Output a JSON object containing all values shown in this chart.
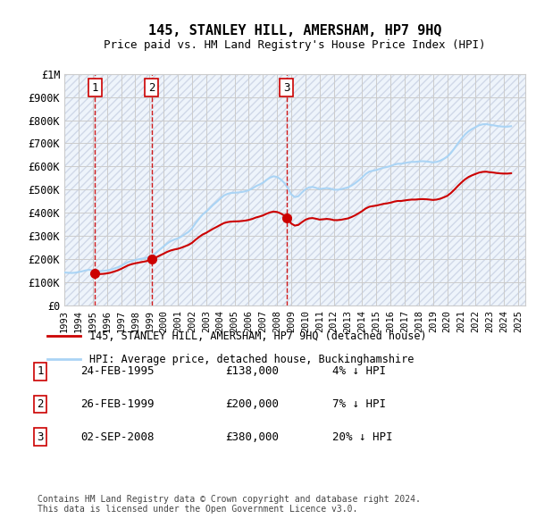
{
  "title": "145, STANLEY HILL, AMERSHAM, HP7 9HQ",
  "subtitle": "Price paid vs. HM Land Registry's House Price Index (HPI)",
  "ylabel_ticks": [
    "£0",
    "£100K",
    "£200K",
    "£300K",
    "£400K",
    "£500K",
    "£600K",
    "£700K",
    "£800K",
    "£900K",
    "£1M"
  ],
  "ytick_values": [
    0,
    100000,
    200000,
    300000,
    400000,
    500000,
    600000,
    700000,
    800000,
    900000,
    1000000
  ],
  "ylim": [
    0,
    1000000
  ],
  "xlim_start": 1993.0,
  "xlim_end": 2025.5,
  "hpi_color": "#aad4f5",
  "price_color": "#cc0000",
  "transaction_color": "#cc0000",
  "dashed_line_color": "#cc0000",
  "background_hatch_color": "#d0d8e8",
  "plot_bg_color": "#eef4fb",
  "transactions": [
    {
      "date": "24-FEB-1995",
      "year": 1995.15,
      "price": 138000,
      "label": "1",
      "pct": "4%",
      "dir": "↓"
    },
    {
      "date": "26-FEB-1999",
      "year": 1999.15,
      "price": 200000,
      "label": "2",
      "pct": "7%",
      "dir": "↓"
    },
    {
      "date": "02-SEP-2008",
      "year": 2008.67,
      "price": 380000,
      "label": "3",
      "pct": "20%",
      "dir": "↓"
    }
  ],
  "legend_line1": "145, STANLEY HILL, AMERSHAM, HP7 9HQ (detached house)",
  "legend_line2": "HPI: Average price, detached house, Buckinghamshire",
  "footnote": "Contains HM Land Registry data © Crown copyright and database right 2024.\nThis data is licensed under the Open Government Licence v3.0.",
  "hpi_data": {
    "years": [
      1993.0,
      1993.25,
      1993.5,
      1993.75,
      1994.0,
      1994.25,
      1994.5,
      1994.75,
      1995.0,
      1995.25,
      1995.5,
      1995.75,
      1996.0,
      1996.25,
      1996.5,
      1996.75,
      1997.0,
      1997.25,
      1997.5,
      1997.75,
      1998.0,
      1998.25,
      1998.5,
      1998.75,
      1999.0,
      1999.25,
      1999.5,
      1999.75,
      2000.0,
      2000.25,
      2000.5,
      2000.75,
      2001.0,
      2001.25,
      2001.5,
      2001.75,
      2002.0,
      2002.25,
      2002.5,
      2002.75,
      2003.0,
      2003.25,
      2003.5,
      2003.75,
      2004.0,
      2004.25,
      2004.5,
      2004.75,
      2005.0,
      2005.25,
      2005.5,
      2005.75,
      2006.0,
      2006.25,
      2006.5,
      2006.75,
      2007.0,
      2007.25,
      2007.5,
      2007.75,
      2008.0,
      2008.25,
      2008.5,
      2008.75,
      2009.0,
      2009.25,
      2009.5,
      2009.75,
      2010.0,
      2010.25,
      2010.5,
      2010.75,
      2011.0,
      2011.25,
      2011.5,
      2011.75,
      2012.0,
      2012.25,
      2012.5,
      2012.75,
      2013.0,
      2013.25,
      2013.5,
      2013.75,
      2014.0,
      2014.25,
      2014.5,
      2014.75,
      2015.0,
      2015.25,
      2015.5,
      2015.75,
      2016.0,
      2016.25,
      2016.5,
      2016.75,
      2017.0,
      2017.25,
      2017.5,
      2017.75,
      2018.0,
      2018.25,
      2018.5,
      2018.75,
      2019.0,
      2019.25,
      2019.5,
      2019.75,
      2020.0,
      2020.25,
      2020.5,
      2020.75,
      2021.0,
      2021.25,
      2021.5,
      2021.75,
      2022.0,
      2022.25,
      2022.5,
      2022.75,
      2023.0,
      2023.25,
      2023.5,
      2023.75,
      2024.0,
      2024.25,
      2024.5
    ],
    "values": [
      143000,
      142000,
      141000,
      142000,
      145000,
      148000,
      152000,
      155000,
      152000,
      150000,
      149000,
      150000,
      152000,
      155000,
      160000,
      165000,
      172000,
      180000,
      188000,
      193000,
      197000,
      200000,
      203000,
      206000,
      210000,
      218000,
      230000,
      243000,
      255000,
      268000,
      278000,
      285000,
      290000,
      298000,
      308000,
      318000,
      333000,
      355000,
      375000,
      393000,
      405000,
      420000,
      435000,
      448000,
      462000,
      475000,
      482000,
      486000,
      487000,
      488000,
      490000,
      493000,
      498000,
      505000,
      515000,
      522000,
      530000,
      542000,
      552000,
      558000,
      555000,
      545000,
      530000,
      508000,
      480000,
      468000,
      472000,
      488000,
      502000,
      510000,
      512000,
      508000,
      503000,
      505000,
      507000,
      505000,
      500000,
      500000,
      502000,
      506000,
      510000,
      518000,
      528000,
      540000,
      553000,
      568000,
      578000,
      582000,
      585000,
      590000,
      595000,
      598000,
      602000,
      608000,
      612000,
      612000,
      615000,
      618000,
      620000,
      620000,
      622000,
      623000,
      622000,
      620000,
      618000,
      620000,
      625000,
      633000,
      642000,
      658000,
      678000,
      700000,
      720000,
      738000,
      752000,
      762000,
      770000,
      778000,
      782000,
      783000,
      780000,
      778000,
      775000,
      773000,
      772000,
      772000,
      774000
    ]
  },
  "price_data": {
    "years": [
      1995.15,
      1999.15,
      2008.67
    ],
    "values": [
      138000,
      200000,
      380000
    ]
  },
  "xtick_years": [
    1993,
    1994,
    1995,
    1996,
    1997,
    1998,
    1999,
    2000,
    2001,
    2002,
    2003,
    2004,
    2005,
    2006,
    2007,
    2008,
    2009,
    2010,
    2011,
    2012,
    2013,
    2014,
    2015,
    2016,
    2017,
    2018,
    2019,
    2020,
    2021,
    2022,
    2023,
    2024,
    2025
  ]
}
